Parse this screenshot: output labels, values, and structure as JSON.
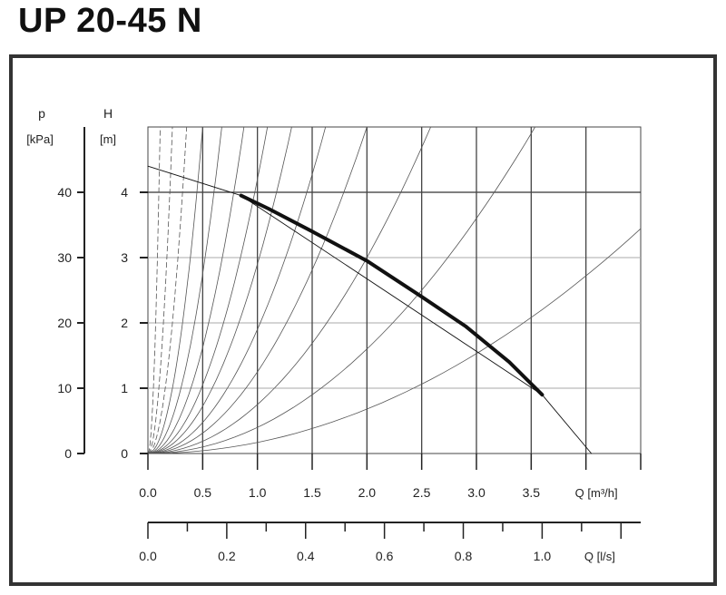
{
  "page_title": "UP 20-45 N",
  "chart_data": {
    "type": "line",
    "title": "UP 20-45 N",
    "x_axis": {
      "label": "Q [m³/h]",
      "range": [
        0.0,
        4.5
      ],
      "ticks": [
        "0.0",
        "0.5",
        "1.0",
        "1.5",
        "2.0",
        "2.5",
        "3.0",
        "3.5"
      ]
    },
    "x2_axis": {
      "label": "Q [l/s]",
      "range": [
        0.0,
        1.25
      ],
      "ticks": [
        "0.0",
        "0.2",
        "0.4",
        "0.6",
        "0.8",
        "1.0"
      ]
    },
    "y_axis": {
      "label": "H",
      "unit": "[m]",
      "range": [
        0,
        5
      ],
      "ticks": [
        "0",
        "1",
        "2",
        "3",
        "4"
      ]
    },
    "y2_axis": {
      "label": "p",
      "unit": "[kPa]",
      "range": [
        0,
        50
      ],
      "ticks": [
        "0",
        "10",
        "20",
        "30",
        "40"
      ]
    },
    "grid": true,
    "series": [
      {
        "role": "pump-curve",
        "x": [
          0.85,
          1.1,
          1.5,
          2.0,
          2.5,
          2.9,
          3.3,
          3.6
        ],
        "y": [
          3.95,
          3.75,
          3.4,
          2.95,
          2.4,
          1.95,
          1.4,
          0.9
        ]
      },
      {
        "role": "pump-curve-extension",
        "x": [
          0.0,
          0.85,
          3.6,
          4.05
        ],
        "y": [
          4.4,
          3.95,
          0.9,
          0.0
        ]
      }
    ],
    "system_curve_coefficients": [
      400,
      100,
      40,
      20,
      11,
      6.5,
      4.2,
      2.9,
      1.9,
      1.25,
      0.75,
      0.4,
      0.17
    ],
    "system_curve_max_q": 4.5,
    "system_curve_max_h": 5.0
  }
}
